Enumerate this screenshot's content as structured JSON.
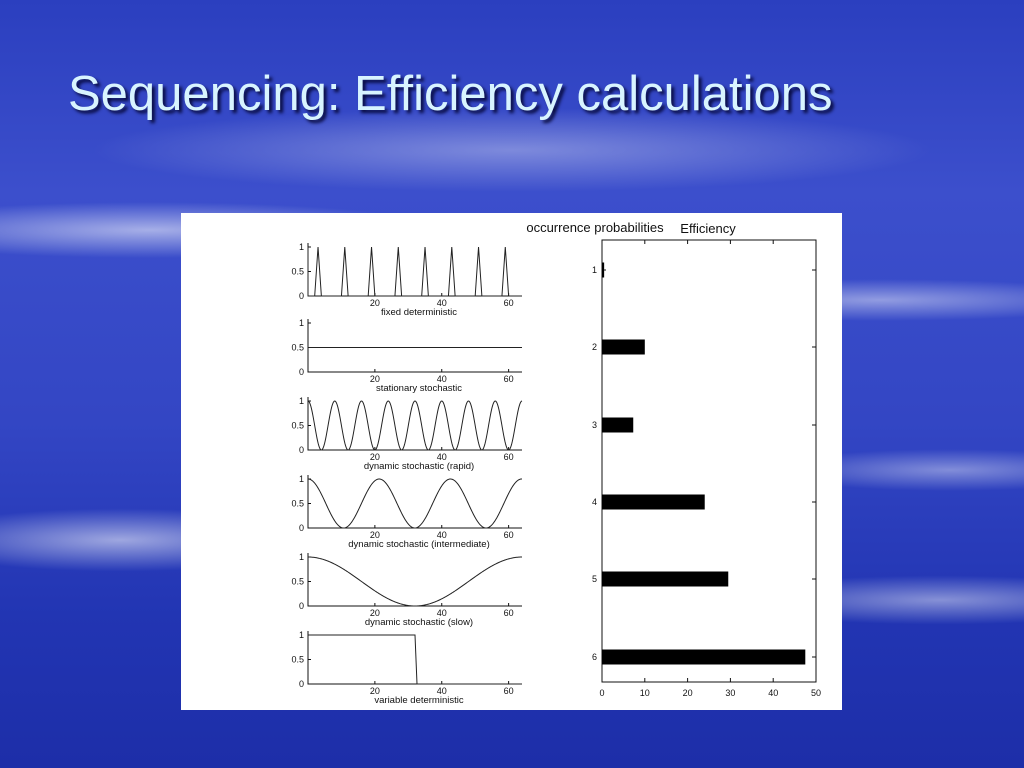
{
  "slide": {
    "title": "Sequencing: Efficiency calculations"
  },
  "chart_data": [
    {
      "type": "line",
      "title": "occurrence probabilities",
      "panels": [
        {
          "label": "fixed deterministic",
          "shape": "periodic-spikes",
          "x_range": [
            0,
            64
          ],
          "ylim": [
            0,
            1
          ],
          "spike_positions": [
            3,
            11,
            19,
            27,
            35,
            43,
            51,
            59
          ],
          "spike_half_width": 1,
          "peak": 1
        },
        {
          "label": "stationary stochastic",
          "shape": "constant",
          "x_range": [
            0,
            64
          ],
          "ylim": [
            0,
            1
          ],
          "value": 0.5
        },
        {
          "label": "dynamic stochastic (rapid)",
          "shape": "cosine",
          "x_range": [
            0,
            64
          ],
          "ylim": [
            0,
            1
          ],
          "period": 8,
          "phase_x": 0
        },
        {
          "label": "dynamic stochastic (intermediate)",
          "shape": "cosine",
          "x_range": [
            0,
            64
          ],
          "ylim": [
            0,
            1
          ],
          "period": 21.3,
          "phase_x": 0
        },
        {
          "label": "dynamic stochastic (slow)",
          "shape": "cosine",
          "x_range": [
            0,
            64
          ],
          "ylim": [
            0,
            1
          ],
          "period": 64,
          "phase_x": 0
        },
        {
          "label": "variable deterministic",
          "shape": "step",
          "x_range": [
            0,
            64
          ],
          "ylim": [
            0,
            1
          ],
          "step_x": 32,
          "before": 1,
          "after": 0
        }
      ],
      "xticks": [
        "20",
        "40",
        "60"
      ],
      "yticks": [
        "0",
        "0.5",
        "1"
      ]
    },
    {
      "type": "bar",
      "orientation": "horizontal",
      "title": "Efficiency",
      "categories": [
        "1",
        "2",
        "3",
        "4",
        "5",
        "6"
      ],
      "values": [
        0.5,
        10,
        7.3,
        24,
        29.5,
        47.5
      ],
      "xlim": [
        0,
        50
      ],
      "xticks": [
        "0",
        "10",
        "20",
        "30",
        "40",
        "50"
      ]
    }
  ]
}
